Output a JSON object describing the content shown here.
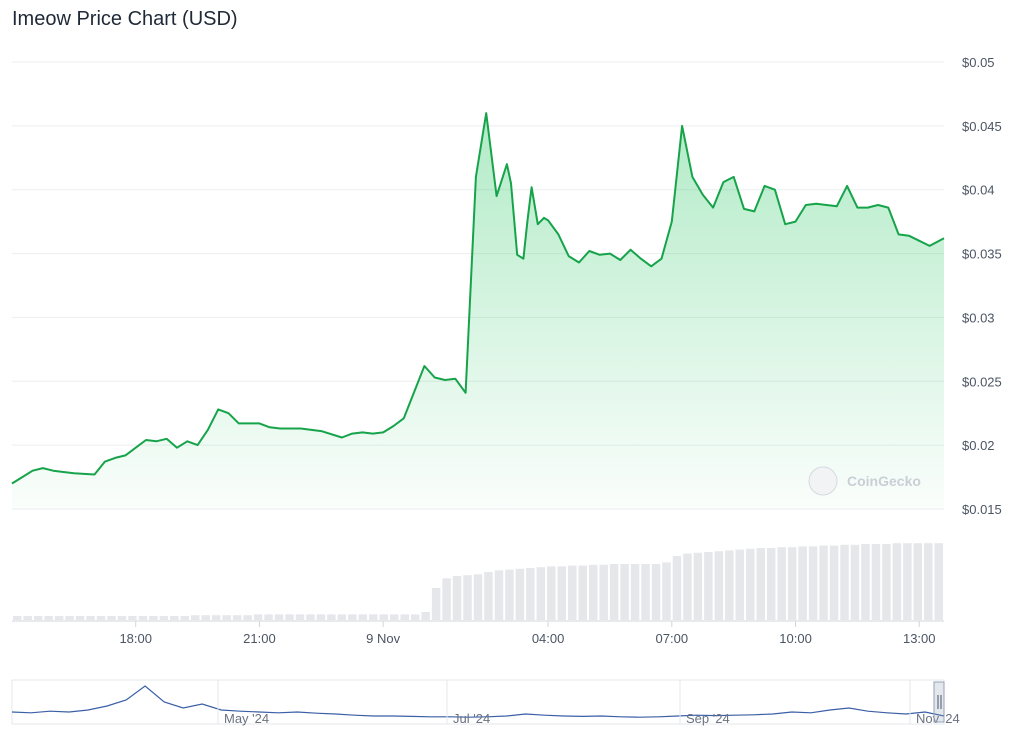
{
  "title": "Imeow Price Chart (USD)",
  "watermark": "CoinGecko",
  "colors": {
    "line": "#16a34a",
    "fill": "#22c55e",
    "volume": "#e5e7eb",
    "navigator": "#3b5fa6",
    "grid": "#eceef1"
  },
  "chart_data": {
    "type": "area",
    "title": "Imeow Price Chart (USD)",
    "xlabel": "",
    "ylabel": "",
    "grid": true,
    "y_axis_position": "right",
    "ylim": [
      0.015,
      0.05
    ],
    "y_ticks": [
      "$0.05",
      "$0.045",
      "$0.04",
      "$0.035",
      "$0.03",
      "$0.025",
      "$0.02",
      "$0.015"
    ],
    "y_tick_values": [
      0.05,
      0.045,
      0.04,
      0.035,
      0.03,
      0.025,
      0.02,
      0.015
    ],
    "x_range_hours": [
      15.0,
      37.6
    ],
    "x_ticks": [
      "18:00",
      "21:00",
      "9 Nov",
      "04:00",
      "07:00",
      "10:00",
      "13:00"
    ],
    "x_tick_hours": [
      18,
      21,
      24,
      28,
      31,
      34,
      37
    ],
    "series": [
      {
        "x": [
          15.0,
          15.25,
          15.5,
          15.75,
          16.0,
          16.25,
          16.5,
          17.0,
          17.25,
          17.5,
          17.75,
          18.0,
          18.25,
          18.5,
          18.75,
          19.0,
          19.25,
          19.5,
          19.75,
          20.0,
          20.25,
          20.5,
          21.0,
          21.25,
          21.5,
          22.0,
          22.5,
          23.0,
          23.25,
          23.5,
          23.75,
          24.0,
          24.25,
          24.5,
          25.0,
          25.25,
          25.5,
          25.75,
          26.0,
          26.25,
          26.5,
          26.75,
          27.0,
          27.1,
          27.25,
          27.4,
          27.5,
          27.6,
          27.75,
          27.9,
          28.0,
          28.25,
          28.5,
          28.75,
          29.0,
          29.25,
          29.5,
          29.75,
          30.0,
          30.25,
          30.5,
          30.75,
          31.0,
          31.25,
          31.5,
          31.75,
          32.0,
          32.25,
          32.5,
          32.75,
          33.0,
          33.25,
          33.5,
          33.75,
          34.0,
          34.25,
          34.5,
          34.75,
          35.0,
          35.25,
          35.5,
          35.75,
          36.0,
          36.25,
          36.5,
          36.75,
          37.0,
          37.25,
          37.6
        ],
        "y": [
          0.017,
          0.0175,
          0.018,
          0.0182,
          0.018,
          0.0179,
          0.0178,
          0.0177,
          0.0187,
          0.019,
          0.0192,
          0.0198,
          0.0204,
          0.0203,
          0.0205,
          0.0198,
          0.0203,
          0.02,
          0.0212,
          0.0228,
          0.0225,
          0.0217,
          0.0217,
          0.0214,
          0.0213,
          0.0213,
          0.0211,
          0.0206,
          0.0209,
          0.021,
          0.0209,
          0.021,
          0.0215,
          0.0221,
          0.0262,
          0.0253,
          0.0251,
          0.0252,
          0.0241,
          0.041,
          0.046,
          0.0395,
          0.042,
          0.0405,
          0.0349,
          0.0346,
          0.0376,
          0.0402,
          0.0373,
          0.0378,
          0.0376,
          0.0365,
          0.0348,
          0.0343,
          0.0352,
          0.0349,
          0.035,
          0.0345,
          0.0353,
          0.0346,
          0.034,
          0.0346,
          0.0375,
          0.045,
          0.041,
          0.0396,
          0.0386,
          0.0406,
          0.041,
          0.0385,
          0.0383,
          0.0403,
          0.04,
          0.0373,
          0.0375,
          0.0388,
          0.0389,
          0.0388,
          0.0387,
          0.0403,
          0.0386,
          0.0386,
          0.0388,
          0.0386,
          0.0365,
          0.0364,
          0.036,
          0.0356,
          0.0362
        ]
      }
    ],
    "volume_relative": [
      0.05,
      0.05,
      0.05,
      0.05,
      0.05,
      0.05,
      0.05,
      0.05,
      0.05,
      0.05,
      0.05,
      0.05,
      0.05,
      0.05,
      0.05,
      0.05,
      0.05,
      0.06,
      0.06,
      0.06,
      0.06,
      0.06,
      0.06,
      0.07,
      0.07,
      0.07,
      0.07,
      0.07,
      0.07,
      0.07,
      0.07,
      0.07,
      0.07,
      0.07,
      0.07,
      0.07,
      0.07,
      0.07,
      0.07,
      0.1,
      0.4,
      0.52,
      0.55,
      0.56,
      0.57,
      0.6,
      0.62,
      0.63,
      0.64,
      0.65,
      0.66,
      0.67,
      0.67,
      0.68,
      0.68,
      0.69,
      0.69,
      0.7,
      0.7,
      0.7,
      0.7,
      0.7,
      0.72,
      0.8,
      0.83,
      0.84,
      0.85,
      0.86,
      0.87,
      0.88,
      0.89,
      0.9,
      0.9,
      0.91,
      0.91,
      0.92,
      0.92,
      0.93,
      0.93,
      0.94,
      0.94,
      0.95,
      0.95,
      0.95,
      0.96,
      0.96,
      0.96,
      0.96,
      0.96
    ],
    "navigator": {
      "x_ticks": [
        "May '24",
        "Jul '24",
        "Sep '24",
        "Nov '24"
      ],
      "relative_values": [
        0.3,
        0.28,
        0.32,
        0.3,
        0.35,
        0.45,
        0.6,
        0.95,
        0.55,
        0.4,
        0.5,
        0.35,
        0.32,
        0.3,
        0.28,
        0.3,
        0.27,
        0.25,
        0.22,
        0.2,
        0.2,
        0.19,
        0.18,
        0.18,
        0.17,
        0.18,
        0.2,
        0.25,
        0.22,
        0.2,
        0.19,
        0.2,
        0.18,
        0.17,
        0.18,
        0.2,
        0.22,
        0.21,
        0.22,
        0.23,
        0.25,
        0.3,
        0.28,
        0.35,
        0.4,
        0.32,
        0.28,
        0.25,
        0.3,
        0.2
      ]
    }
  }
}
